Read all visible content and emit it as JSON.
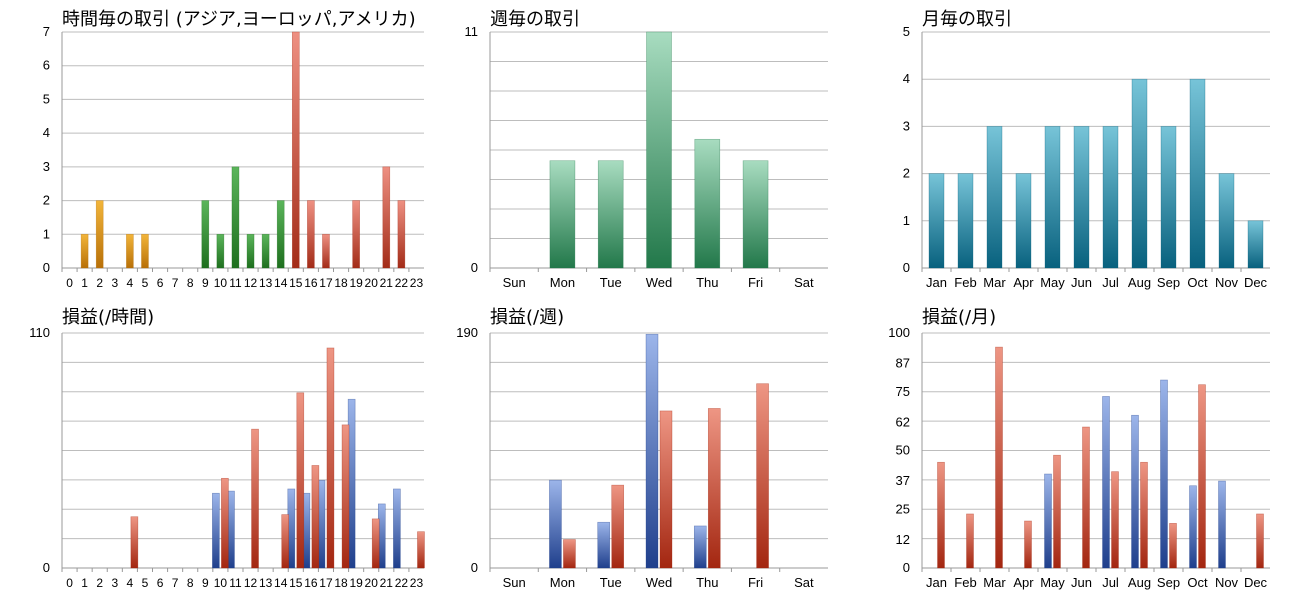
{
  "colors": {
    "hourly_asia": [
      "#f2b53a",
      "#b87008"
    ],
    "hourly_europe": [
      "#5bb55b",
      "#1e6f1e"
    ],
    "hourly_america": [
      "#ee9082",
      "#a32c18"
    ],
    "green": [
      "#a8dcc0",
      "#22784a"
    ],
    "teal": [
      "#77c4d8",
      "#08617e"
    ],
    "blue": [
      "#9cb5ea",
      "#1f3f8c"
    ],
    "red": [
      "#ee9684",
      "#a32610"
    ],
    "grid": "#bdbdbd",
    "axis": "#999999"
  },
  "charts": [
    {
      "title": "時間毎の取引 (アジア,ヨーロッパ,アメリカ)",
      "chart_data": {
        "type": "bar",
        "categories": [
          "0",
          "1",
          "2",
          "3",
          "4",
          "5",
          "6",
          "7",
          "8",
          "9",
          "10",
          "11",
          "12",
          "13",
          "14",
          "15",
          "16",
          "17",
          "18",
          "19",
          "20",
          "21",
          "22",
          "23"
        ],
        "series": [
          {
            "name": "アジア",
            "values": [
              0,
              1,
              2,
              0,
              1,
              1,
              0,
              0,
              0,
              0,
              0,
              0,
              0,
              0,
              0,
              0,
              0,
              0,
              0,
              0,
              0,
              0,
              0,
              0
            ]
          },
          {
            "name": "ヨーロッパ",
            "values": [
              0,
              0,
              0,
              0,
              0,
              0,
              0,
              0,
              0,
              2,
              1,
              3,
              1,
              1,
              2,
              0,
              0,
              0,
              0,
              0,
              0,
              0,
              0,
              0
            ]
          },
          {
            "name": "アメリカ",
            "values": [
              0,
              0,
              0,
              0,
              0,
              0,
              0,
              0,
              0,
              0,
              0,
              0,
              0,
              0,
              0,
              7,
              2,
              1,
              0,
              2,
              0,
              3,
              2,
              0
            ]
          }
        ],
        "yticks": [
          "0",
          "1",
          "2",
          "3",
          "4",
          "5",
          "6",
          "7"
        ],
        "ylim": [
          0,
          7
        ],
        "grid": true,
        "legend": "none"
      }
    },
    {
      "title": "週毎の取引",
      "chart_data": {
        "type": "bar",
        "categories": [
          "Sun",
          "Mon",
          "Tue",
          "Wed",
          "Thu",
          "Fri",
          "Sat"
        ],
        "series": [
          {
            "values": [
              0,
              5,
              5,
              11,
              6,
              5,
              0
            ]
          }
        ],
        "yticks": [
          "0",
          "11"
        ],
        "ylim": [
          0,
          11
        ],
        "grid": true,
        "legend": "none"
      }
    },
    {
      "title": "月毎の取引",
      "chart_data": {
        "type": "bar",
        "categories": [
          "Jan",
          "Feb",
          "Mar",
          "Apr",
          "May",
          "Jun",
          "Jul",
          "Aug",
          "Sep",
          "Oct",
          "Nov",
          "Dec"
        ],
        "series": [
          {
            "values": [
              2,
              2,
              3,
              2,
              3,
              3,
              3,
              4,
              3,
              4,
              2,
              1
            ]
          }
        ],
        "yticks": [
          "0",
          "1",
          "2",
          "3",
          "4",
          "5"
        ],
        "ylim": [
          0,
          5
        ],
        "grid": true,
        "legend": "none"
      }
    },
    {
      "title": "損益(/時間)",
      "chart_data": {
        "type": "bar",
        "categories": [
          "0",
          "1",
          "2",
          "3",
          "4",
          "5",
          "6",
          "7",
          "8",
          "9",
          "10",
          "11",
          "12",
          "13",
          "14",
          "15",
          "16",
          "17",
          "18",
          "19",
          "20",
          "21",
          "22",
          "23"
        ],
        "series": [
          {
            "values": [
              0,
              0,
              0,
              0,
              0,
              0,
              0,
              0,
              0,
              0,
              35,
              36,
              0,
              0,
              0,
              37,
              35,
              41,
              0,
              79,
              0,
              30,
              37,
              0
            ]
          },
          {
            "values": [
              0,
              0,
              0,
              0,
              24,
              0,
              0,
              0,
              0,
              0,
              42,
              0,
              65,
              0,
              25,
              82,
              48,
              103,
              67,
              0,
              23,
              0,
              0,
              17
            ]
          }
        ],
        "yticks": [
          "0",
          "110"
        ],
        "ylim": [
          0,
          110
        ],
        "grid": true,
        "legend": "none"
      }
    },
    {
      "title": "損益(/週)",
      "chart_data": {
        "type": "bar",
        "categories": [
          "Sun",
          "Mon",
          "Tue",
          "Wed",
          "Thu",
          "Fri",
          "Sat"
        ],
        "series": [
          {
            "values": [
              0,
              71,
              37,
              189,
              34,
              0,
              0
            ]
          },
          {
            "values": [
              0,
              23,
              67,
              127,
              129,
              149,
              0
            ]
          }
        ],
        "yticks": [
          "0",
          "190"
        ],
        "ylim": [
          0,
          190
        ],
        "grid": true,
        "legend": "none"
      }
    },
    {
      "title": "損益(/月)",
      "chart_data": {
        "type": "bar",
        "categories": [
          "Jan",
          "Feb",
          "Mar",
          "Apr",
          "May",
          "Jun",
          "Jul",
          "Aug",
          "Sep",
          "Oct",
          "Nov",
          "Dec"
        ],
        "series": [
          {
            "values": [
              0,
              0,
              0,
              0,
              40,
              0,
              73,
              65,
              80,
              35,
              37,
              0
            ]
          },
          {
            "values": [
              45,
              23,
              94,
              20,
              48,
              60,
              41,
              45,
              19,
              78,
              0,
              23
            ]
          }
        ],
        "yticks": [
          "0",
          "12",
          "25",
          "37",
          "50",
          "62",
          "75",
          "87",
          "100"
        ],
        "ylim": [
          0,
          100
        ],
        "grid": true,
        "legend": "none"
      }
    }
  ]
}
